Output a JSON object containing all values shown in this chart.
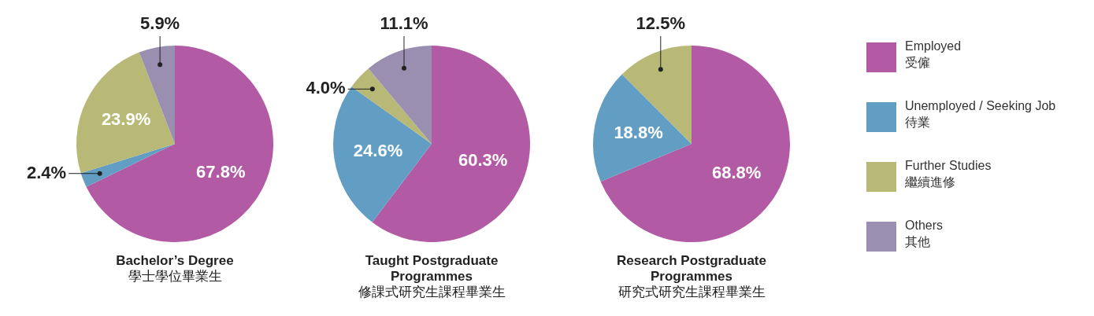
{
  "chart_data": [
    {
      "type": "pie",
      "title": "Bachelor’s Degree\n學士學位畢業生",
      "categories": [
        "Employed\n受僱",
        "Unemployed / Seeking Job\n待業",
        "Further Studies\n繼續進修",
        "Others\n其他"
      ],
      "values": [
        67.8,
        2.4,
        23.9,
        5.9
      ],
      "value_labels": [
        "67.8%",
        "2.4%",
        "23.9%",
        "5.9%"
      ],
      "colors": [
        "#b25aa3",
        "#629ec4",
        "#b8b977",
        "#9a8fb0"
      ],
      "legend": "right"
    },
    {
      "type": "pie",
      "title": "Taught Postgraduate\nProgrammes\n修課式研究生課程畢業生",
      "categories": [
        null,
        null,
        null,
        null
      ],
      "values": [
        60.3,
        24.6,
        4.0,
        11.1
      ],
      "value_labels": [
        "60.3%",
        "24.6%",
        "4.0%",
        "11.1%"
      ],
      "colors": [
        "#b25aa3",
        "#629ec4",
        "#b8b977",
        "#9a8fb0"
      ]
    },
    {
      "type": "pie",
      "title": "Research Postgraduate\nProgrammes\n研究式研究生課程畢業生",
      "categories": [
        null,
        null,
        null
      ],
      "values": [
        68.8,
        18.8,
        12.5
      ],
      "value_labels": [
        "68.8%",
        "18.8%",
        "12.5%"
      ],
      "colors": [
        "#b25aa3",
        "#629ec4",
        "#b8b977"
      ]
    }
  ]
}
